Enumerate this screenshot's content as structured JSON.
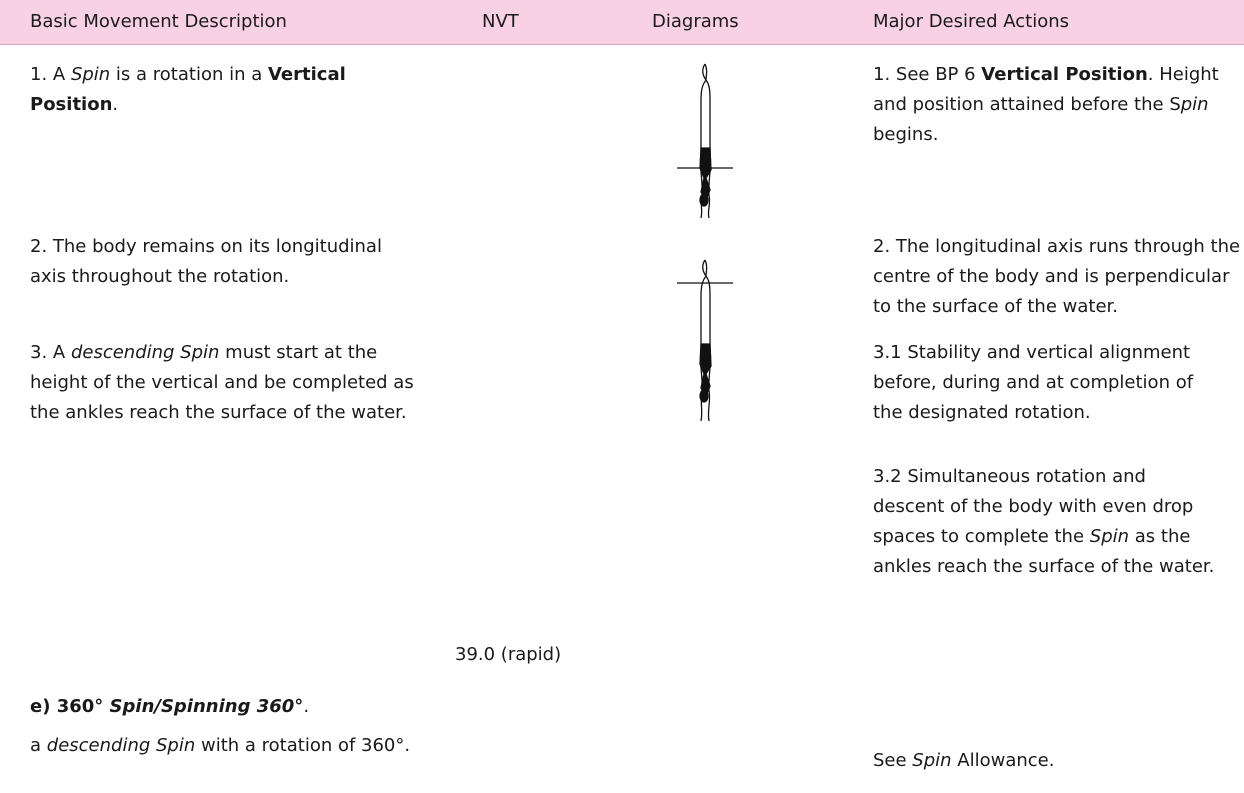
{
  "header": [
    "Basic Movement Description",
    "NVT",
    "Diagrams",
    "Major Desired Actions"
  ],
  "left": [
    [
      "1. A ",
      "Spin",
      " is a rotation in a ",
      "Vertical Position",
      "."
    ],
    [
      "2. The body remains on its longitudinal axis throughout the rotation."
    ],
    [
      "3. A ",
      "descending Spin",
      " must start at the height of the vertical and be completed as the ankles reach the surface of the water."
    ]
  ],
  "nvt": "39.0 (rapid)",
  "heading": [
    "e) 360° ",
    "Spin/Spinning 360°",
    "."
  ],
  "definition": [
    "a ",
    "descending Spin",
    " with a rotation of 360°."
  ],
  "right": [
    [
      "1. See BP 6 ",
      "Vertical Position",
      ". Height and position attained before the S",
      "pin",
      " begins."
    ],
    [
      "2. The longitudinal axis runs through the centre of the body and is perpendicular to the surface of the water."
    ],
    [
      "3.1 Stability and vertical alignment before, during and at completion of the designated rotation."
    ],
    [
      "3.2 Simultaneous rotation and descent of the body with even drop spaces to complete the ",
      "Spin",
      " as the ankles reach the surface of the water."
    ],
    [
      "See ",
      "Spin",
      " Allowance."
    ]
  ]
}
